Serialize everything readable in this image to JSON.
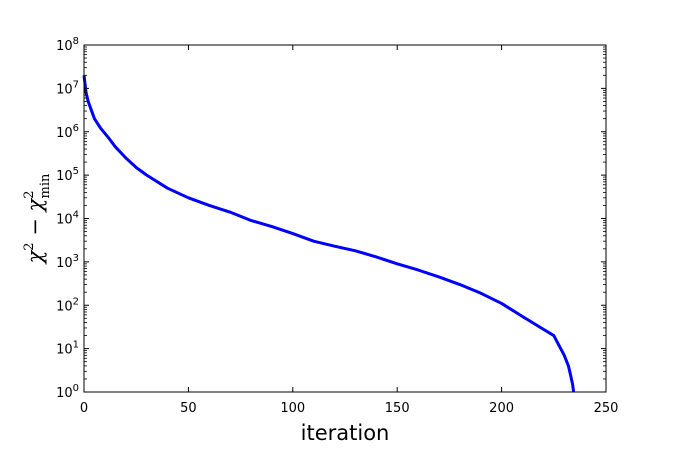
{
  "chart_data": {
    "type": "line",
    "xlabel": "iteration",
    "ylabel": {
      "base": "χ",
      "minus": " − ",
      "exp": "2",
      "sub": "min"
    },
    "xlim": [
      0,
      250
    ],
    "ylim": [
      1,
      100000000
    ],
    "yscale": "log",
    "grid": false,
    "x_ticks": [
      0,
      50,
      100,
      150,
      200,
      250
    ],
    "x_tick_labels": [
      "0",
      "50",
      "100",
      "150",
      "200",
      "250"
    ],
    "y_ticks": [
      1,
      10,
      100,
      1000,
      10000,
      100000,
      1000000,
      10000000,
      100000000
    ],
    "y_tick_labels": [
      {
        "base": "10",
        "exp": "0"
      },
      {
        "base": "10",
        "exp": "1"
      },
      {
        "base": "10",
        "exp": "2"
      },
      {
        "base": "10",
        "exp": "3"
      },
      {
        "base": "10",
        "exp": "4"
      },
      {
        "base": "10",
        "exp": "5"
      },
      {
        "base": "10",
        "exp": "6"
      },
      {
        "base": "10",
        "exp": "7"
      },
      {
        "base": "10",
        "exp": "8"
      }
    ],
    "series": [
      {
        "color": "#0000ff",
        "x": [
          0,
          1,
          2,
          5,
          8,
          12,
          15,
          20,
          25,
          30,
          40,
          50,
          60,
          70,
          80,
          90,
          100,
          110,
          120,
          130,
          140,
          150,
          160,
          170,
          180,
          190,
          200,
          210,
          220,
          225,
          230,
          232,
          233,
          234,
          234.5
        ],
        "y": [
          20000000,
          8000000,
          5000000,
          2000000,
          1200000,
          700000,
          450000,
          250000,
          150000,
          100000,
          50000,
          30000,
          20000,
          14000,
          9000,
          6500,
          4500,
          3000,
          2300,
          1800,
          1300,
          900,
          650,
          450,
          300,
          190,
          110,
          55,
          28,
          20,
          7,
          4,
          2.5,
          1.5,
          1.0
        ]
      }
    ]
  }
}
